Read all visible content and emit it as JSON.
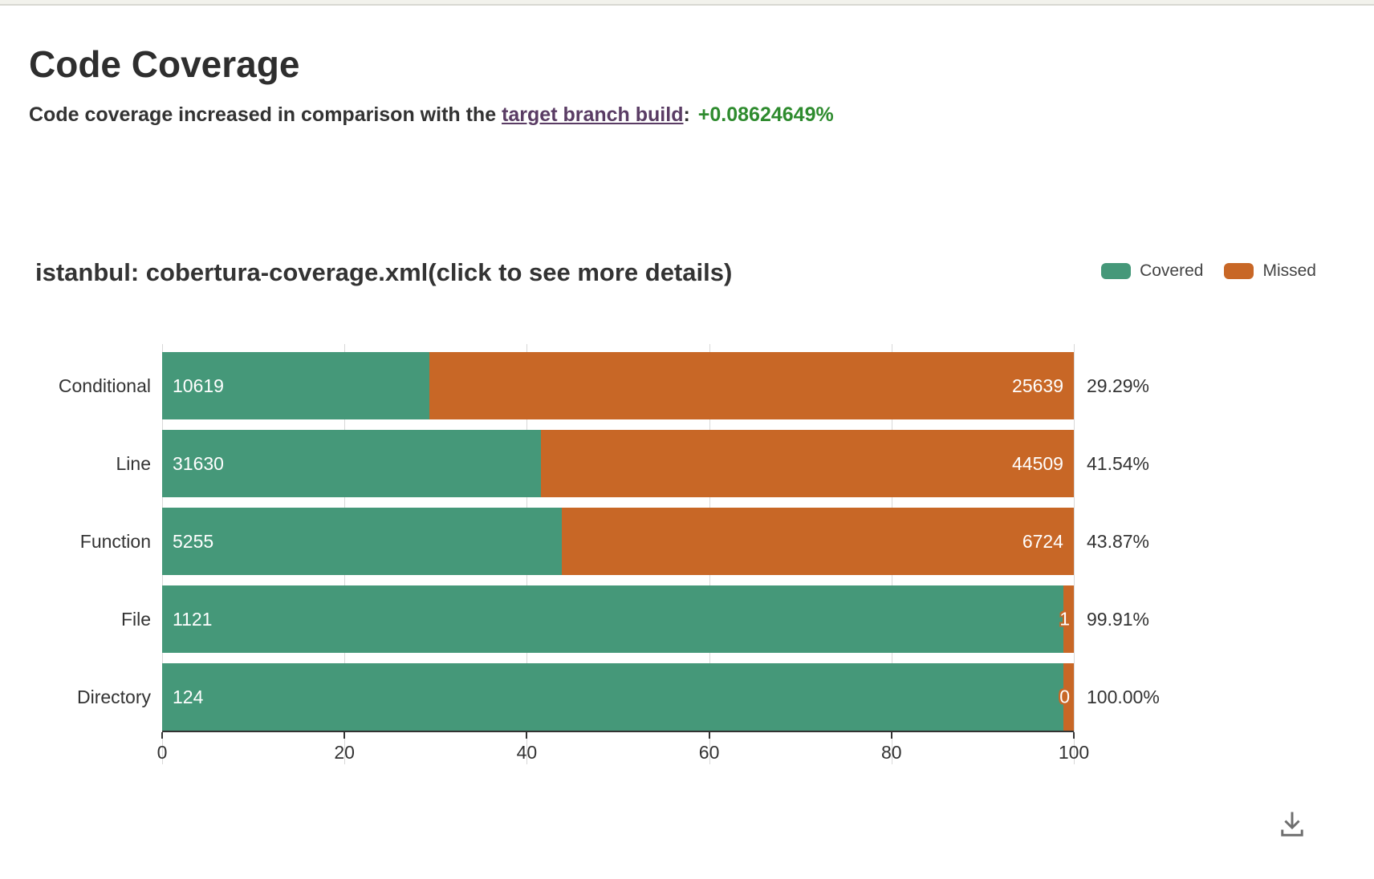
{
  "page": {
    "heading": "Code Coverage"
  },
  "summary": {
    "prefix": "Code coverage increased in comparison with the ",
    "link_text": "target branch build",
    "colon": ":",
    "delta": "+0.08624649%",
    "link_color": "#5A3C64",
    "delta_color": "#2E8B2E"
  },
  "chart": {
    "title": "istanbul: cobertura-coverage.xml(click to see more details)"
  },
  "icons": {
    "download": "tray-arrow-down"
  },
  "colors": {
    "covered": "#459879",
    "missed": "#C86726",
    "axis": "#333333",
    "gridline": "#D8D8D8"
  },
  "chart_data": {
    "type": "bar",
    "orientation": "horizontal",
    "stacked": true,
    "title": "istanbul: cobertura-coverage.xml(click to see more details)",
    "categories": [
      "Conditional",
      "Line",
      "Function",
      "File",
      "Directory"
    ],
    "series": [
      {
        "name": "Covered",
        "color": "#459879",
        "values": [
          10619,
          31630,
          5255,
          1121,
          124
        ]
      },
      {
        "name": "Missed",
        "color": "#C86726",
        "values": [
          25639,
          44509,
          6724,
          1,
          0
        ]
      }
    ],
    "row_percent_covered": [
      29.29,
      41.54,
      43.87,
      99.91,
      100.0
    ],
    "row_percent_labels": [
      "29.29%",
      "41.54%",
      "43.87%",
      "99.91%",
      "100.00%"
    ],
    "xlabel": "",
    "ylabel": "",
    "xlim": [
      0,
      100
    ],
    "xticks": [
      0,
      20,
      40,
      60,
      80,
      100
    ],
    "grid": true,
    "legend_position": "top-right"
  }
}
